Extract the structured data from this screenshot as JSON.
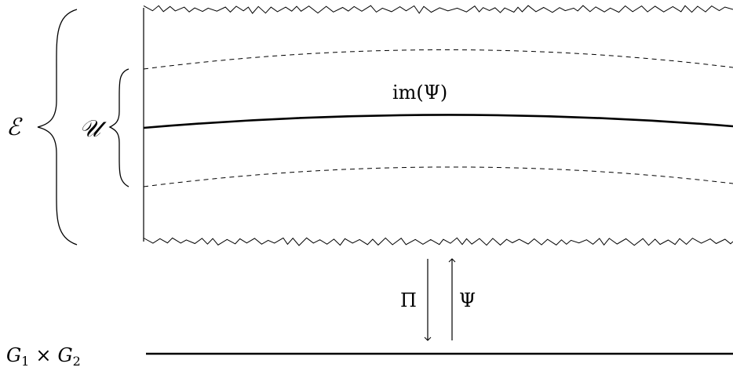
{
  "labels": {
    "total_space": "ℰ",
    "neighborhood": "𝒰",
    "image": "im(Ψ)",
    "projection": "Π",
    "section": "Ψ",
    "base": {
      "g1": "G",
      "g1_sub": "1",
      "times": "×",
      "g2": "G",
      "g2_sub": "2"
    }
  },
  "colors": {
    "stroke": "#000000",
    "background": "#ffffff"
  }
}
